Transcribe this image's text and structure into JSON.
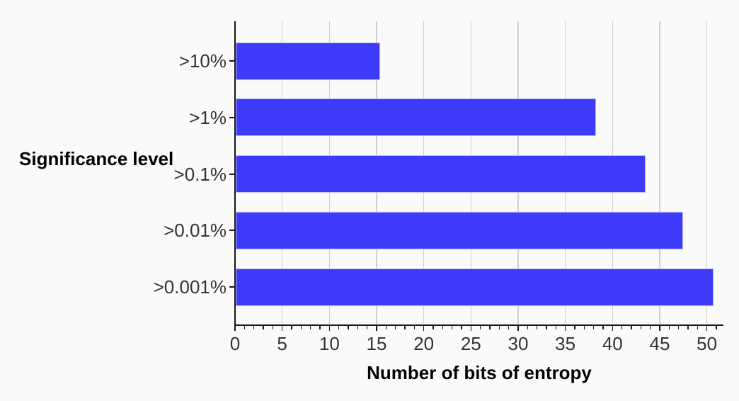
{
  "chart_data": {
    "type": "bar",
    "orientation": "horizontal",
    "title": "",
    "xlabel": "Number of bits of entropy",
    "ylabel": "Significance level",
    "categories": [
      ">10%",
      ">1%",
      ">0.1%",
      ">0.01%",
      ">0.001%"
    ],
    "values": [
      15.3,
      38.2,
      43.4,
      47.4,
      50.6
    ],
    "xlim": [
      0,
      51.7
    ],
    "x_major_ticks": [
      0,
      5,
      10,
      15,
      20,
      25,
      30,
      35,
      40,
      45,
      50
    ],
    "x_minor_tick_step": 1,
    "grid": "vertical-major-only",
    "legend": "none",
    "colors": {
      "bar_fill": "#3E3AF9",
      "bar_border": "#bdbcf5",
      "gridline": "#cfcfcf",
      "axis": "#161616",
      "tick_text": "#333333",
      "title_text": "#000000",
      "background": "#fafafa"
    }
  }
}
